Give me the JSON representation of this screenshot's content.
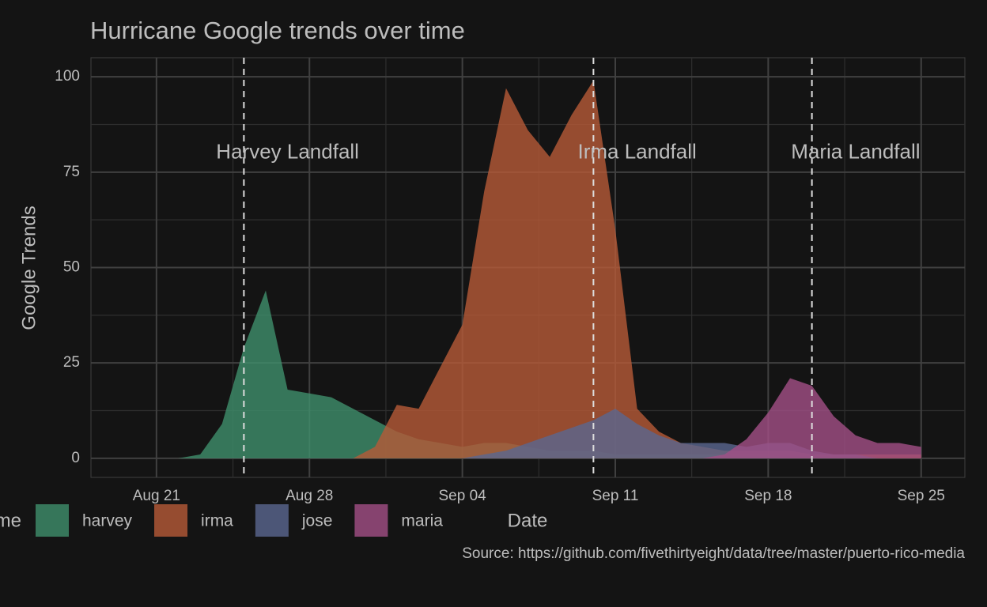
{
  "chart_data": {
    "type": "area",
    "title": "Hurricane Google trends over time",
    "x_label": "Date",
    "y_label": "Google Trends",
    "caption": "Source: https://github.com/fivethirtyeight/data/tree/master/puerto-rico-media",
    "legend_title": "name",
    "x": [
      "Aug 20",
      "Aug 21",
      "Aug 22",
      "Aug 23",
      "Aug 24",
      "Aug 25",
      "Aug 26",
      "Aug 27",
      "Aug 28",
      "Aug 29",
      "Aug 30",
      "Aug 31",
      "Sep 01",
      "Sep 02",
      "Sep 03",
      "Sep 04",
      "Sep 05",
      "Sep 06",
      "Sep 07",
      "Sep 08",
      "Sep 09",
      "Sep 10",
      "Sep 11",
      "Sep 12",
      "Sep 13",
      "Sep 14",
      "Sep 15",
      "Sep 16",
      "Sep 17",
      "Sep 18",
      "Sep 19",
      "Sep 20",
      "Sep 21",
      "Sep 22",
      "Sep 23",
      "Sep 24",
      "Sep 25"
    ],
    "series": [
      {
        "name": "harvey",
        "color": "#3f8f6c",
        "values": [
          0,
          0,
          0,
          1,
          9,
          29,
          44,
          18,
          17,
          16,
          13,
          10,
          7,
          5,
          4,
          3,
          4,
          4,
          3,
          2,
          2,
          2,
          1,
          1,
          1,
          1,
          1,
          1,
          1,
          1,
          0,
          0,
          0,
          0,
          0,
          0,
          0
        ]
      },
      {
        "name": "irma",
        "color": "#b65a37",
        "values": [
          0,
          0,
          0,
          0,
          0,
          0,
          0,
          0,
          0,
          0,
          0,
          3,
          14,
          13,
          24,
          35,
          70,
          97,
          86,
          79,
          90,
          99,
          60,
          13,
          7,
          4,
          3,
          2,
          2,
          2,
          2,
          1,
          1,
          1,
          1,
          1,
          1
        ]
      },
      {
        "name": "jose",
        "color": "#5a6790",
        "values": [
          0,
          0,
          0,
          0,
          0,
          0,
          0,
          0,
          0,
          0,
          0,
          0,
          0,
          0,
          0,
          0,
          1,
          2,
          4,
          6,
          8,
          10,
          13,
          9,
          6,
          4,
          4,
          4,
          3,
          4,
          4,
          2,
          1,
          1,
          0,
          0,
          0
        ]
      },
      {
        "name": "maria",
        "color": "#a24f86",
        "values": [
          0,
          0,
          0,
          0,
          0,
          0,
          0,
          0,
          0,
          0,
          0,
          0,
          0,
          0,
          0,
          0,
          0,
          0,
          0,
          0,
          0,
          0,
          0,
          0,
          0,
          0,
          0,
          1,
          5,
          12,
          21,
          19,
          11,
          6,
          4,
          4,
          3
        ]
      }
    ],
    "xlim": [
      "Aug 18",
      "Sep 27"
    ],
    "xticks": [
      "Aug 21",
      "Aug 28",
      "Sep 04",
      "Sep 11",
      "Sep 18",
      "Sep 25"
    ],
    "ylim": [
      -5,
      105
    ],
    "yticks": [
      0,
      25,
      50,
      75,
      100
    ],
    "grid": true,
    "annotations": [
      {
        "x": "Aug 25",
        "text": "Harvey Landfall",
        "text_x": "Aug 27",
        "text_y": 80
      },
      {
        "x": "Sep 10",
        "text": "Irma Landfall",
        "text_x": "Sep 12",
        "text_y": 80
      },
      {
        "x": "Sep 20",
        "text": "Maria Landfall",
        "text_x": "Sep 22",
        "text_y": 80
      }
    ]
  }
}
